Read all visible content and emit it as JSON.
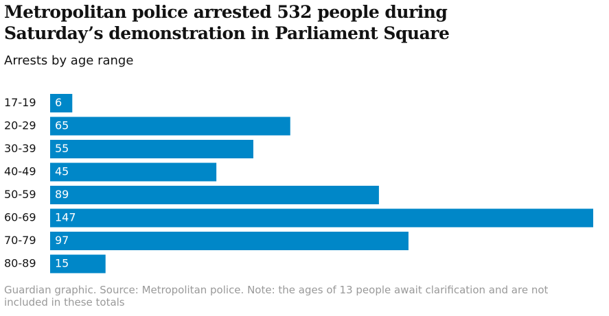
{
  "chart_data": {
    "type": "bar",
    "orientation": "horizontal",
    "title": "Metropolitan police arrested 532 people during Saturday’s demonstration in Parliament Square",
    "subtitle": "Arrests by age range",
    "categories": [
      "17-19",
      "20-29",
      "30-39",
      "40-49",
      "50-59",
      "60-69",
      "70-79",
      "80-89"
    ],
    "values": [
      6,
      65,
      55,
      45,
      89,
      147,
      97,
      15
    ],
    "color": "#0087c8",
    "footnote": "Guardian graphic. Source: Metropolitan police. Note: the ages of 13 people await clarification and are not included in these totals"
  }
}
